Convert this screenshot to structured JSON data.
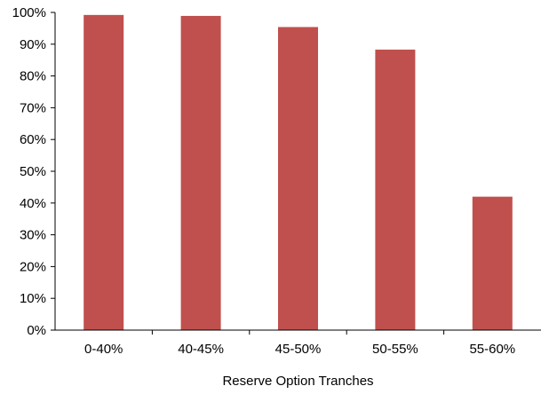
{
  "chart_data": {
    "type": "bar",
    "title": "",
    "xlabel": "Reserve Option Tranches",
    "ylabel": "",
    "categories": [
      "0-40%",
      "40-45%",
      "45-50%",
      "50-55%",
      "55-60%"
    ],
    "values": [
      99.2,
      98.9,
      95.4,
      88.3,
      42.0
    ],
    "ylim": [
      0,
      100
    ],
    "yticks": [
      0,
      10,
      20,
      30,
      40,
      50,
      60,
      70,
      80,
      90,
      100
    ],
    "ytick_labels": [
      "0%",
      "10%",
      "20%",
      "30%",
      "40%",
      "50%",
      "60%",
      "70%",
      "80%",
      "90%",
      "100%"
    ],
    "value_format": "percent",
    "grid": false,
    "legend": "none",
    "colors": {
      "bar": "#C0504D",
      "axis": "#000000"
    }
  }
}
